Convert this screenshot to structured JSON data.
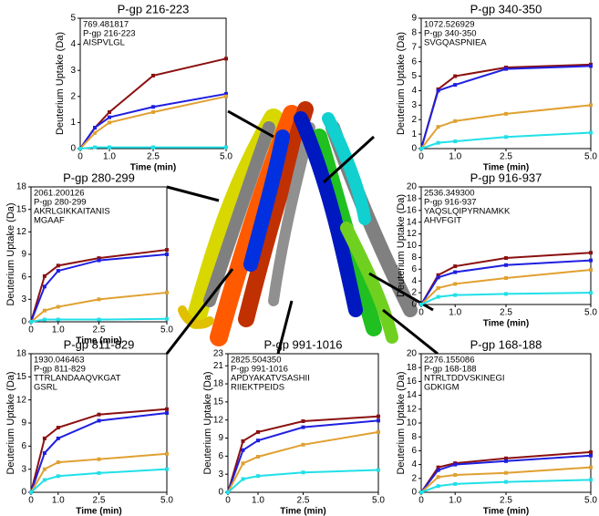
{
  "chart_data": [
    {
      "type": "line",
      "title": "P-gp 216-223",
      "annotation": [
        "769.481817",
        "P-gp 216-223",
        "AISPVLGL"
      ],
      "xlabel": "Time (min)",
      "ylabel": "Deuterium Uptake (Da)",
      "x": [
        0,
        0.5,
        1,
        2.5,
        5
      ],
      "xlim": [
        0,
        5
      ],
      "xticks": [
        0,
        {
          "value": 1,
          "label": "1.0"
        },
        {
          "value": 2.5,
          "label": "2.5"
        },
        {
          "value": 5,
          "label": "5.0"
        }
      ],
      "ylim": [
        0,
        5
      ],
      "yticks": [
        0,
        1,
        2,
        3,
        4,
        5
      ],
      "series": [
        {
          "color": "#8b1010",
          "values": [
            0,
            0.8,
            1.4,
            2.8,
            3.45
          ]
        },
        {
          "color": "#1f1fe0",
          "values": [
            0,
            0.8,
            1.2,
            1.6,
            2.1
          ]
        },
        {
          "color": "#e0a030",
          "values": [
            0,
            0.6,
            1.0,
            1.4,
            2.0
          ]
        },
        {
          "color": "#20e0e8",
          "values": [
            0,
            0.05,
            0.05,
            0.05,
            0.05
          ]
        }
      ]
    },
    {
      "type": "line",
      "title": "P-gp 340-350",
      "annotation": [
        "1072.526929",
        "P-gp 340-350",
        "SVGQASPNIEA"
      ],
      "xlabel": "Time (min)",
      "ylabel": "Deuterium Uptake (Da)",
      "x": [
        0,
        0.5,
        1,
        2.5,
        5
      ],
      "xlim": [
        0,
        5
      ],
      "xticks": [
        0,
        {
          "value": 1,
          "label": "1.0"
        },
        {
          "value": 2.5,
          "label": "2.5"
        },
        {
          "value": 5,
          "label": "5.0"
        }
      ],
      "ylim": [
        0,
        9
      ],
      "yticks": [
        0,
        1,
        2,
        3,
        4,
        5,
        6,
        7,
        8,
        9
      ],
      "series": [
        {
          "color": "#8b1010",
          "values": [
            0,
            4.1,
            5.0,
            5.6,
            5.8
          ]
        },
        {
          "color": "#1f1fe0",
          "values": [
            0,
            4.0,
            4.4,
            5.5,
            5.7
          ]
        },
        {
          "color": "#e0a030",
          "values": [
            0,
            1.5,
            1.9,
            2.4,
            3.0
          ]
        },
        {
          "color": "#20e0e8",
          "values": [
            0,
            0.4,
            0.5,
            0.8,
            1.1
          ]
        }
      ]
    },
    {
      "type": "line",
      "title": "P-gp 280-299",
      "annotation": [
        "2061.200126",
        "P-gp 280-299",
        "AKRLGIKKAITANIS",
        "MGAAF"
      ],
      "xlabel": "Time (min)",
      "ylabel": "Deuterium Uptake (Da)",
      "x": [
        0,
        0.5,
        1,
        2.5,
        5
      ],
      "xlim": [
        0,
        5
      ],
      "xticks": [
        0,
        {
          "value": 1,
          "label": "1.0"
        },
        {
          "value": 2.5,
          "label": "2.5"
        },
        {
          "value": 5,
          "label": "5.0"
        }
      ],
      "ylim": [
        0,
        18
      ],
      "yticks": [
        0,
        3,
        6,
        9,
        12,
        15,
        18
      ],
      "series": [
        {
          "color": "#8b1010",
          "values": [
            0,
            6.1,
            7.5,
            8.5,
            9.6
          ]
        },
        {
          "color": "#1f1fe0",
          "values": [
            0,
            4.7,
            6.8,
            8.2,
            9.0
          ]
        },
        {
          "color": "#e0a030",
          "values": [
            0,
            1.5,
            2.0,
            3.0,
            3.9
          ]
        },
        {
          "color": "#20e0e8",
          "values": [
            0,
            0.3,
            0.3,
            0.3,
            0.4
          ]
        }
      ]
    },
    {
      "type": "line",
      "title": "P-gp 916-937",
      "annotation": [
        "2536.349300",
        "P-gp 916-937",
        "YAQSLQIPYRNAMKK",
        "AHVFGIT"
      ],
      "xlabel": "Time (min)",
      "ylabel": "Deuterium Uptake (Da)",
      "x": [
        0,
        0.5,
        1,
        2.5,
        5
      ],
      "xlim": [
        0,
        5
      ],
      "xticks": [
        0,
        {
          "value": 1,
          "label": "1.0"
        },
        {
          "value": 2.5,
          "label": "2.5"
        },
        {
          "value": 5,
          "label": "5.0"
        }
      ],
      "ylim": [
        0,
        20
      ],
      "yticks": [
        0,
        2,
        4,
        6,
        8,
        10,
        12,
        14,
        16,
        18,
        20
      ],
      "series": [
        {
          "color": "#8b1010",
          "values": [
            0,
            5.0,
            6.5,
            7.9,
            8.8
          ]
        },
        {
          "color": "#1f1fe0",
          "values": [
            0,
            4.6,
            5.5,
            6.7,
            7.5
          ]
        },
        {
          "color": "#e0a030",
          "values": [
            0,
            2.8,
            3.5,
            4.5,
            5.9
          ]
        },
        {
          "color": "#20e0e8",
          "values": [
            0,
            1.3,
            1.6,
            1.8,
            2.0
          ]
        }
      ]
    },
    {
      "type": "line",
      "title": "P-gp 811-829",
      "annotation": [
        "1930.046463",
        "P-gp 811-829",
        "TTRLANDAAQVKGAT",
        "GSRL"
      ],
      "xlabel": "Time (min)",
      "ylabel": "Deuterium Uptake (Da)",
      "x": [
        0,
        0.5,
        1,
        2.5,
        5
      ],
      "xlim": [
        0,
        5
      ],
      "xticks": [
        0,
        {
          "value": 1,
          "label": "1.0"
        },
        {
          "value": 2.5,
          "label": "2.5"
        },
        {
          "value": 5,
          "label": "5.0"
        }
      ],
      "ylim": [
        0,
        18
      ],
      "yticks": [
        0,
        3,
        6,
        9,
        12,
        15,
        18
      ],
      "series": [
        {
          "color": "#8b1010",
          "values": [
            0,
            7.0,
            8.4,
            10.1,
            10.8
          ]
        },
        {
          "color": "#1f1fe0",
          "values": [
            0,
            5.1,
            7.0,
            9.3,
            10.3
          ]
        },
        {
          "color": "#e0a030",
          "values": [
            0,
            3.0,
            3.9,
            4.3,
            5.0
          ]
        },
        {
          "color": "#20e0e8",
          "values": [
            0,
            1.6,
            2.1,
            2.5,
            3.0
          ]
        }
      ]
    },
    {
      "type": "line",
      "title": "P-gp 991-1016",
      "annotation": [
        "2825.504350",
        "P-gp 991-1016",
        "APDYAKATVSASHII",
        "RIIEKTPEIDS"
      ],
      "xlabel": "Time (min)",
      "ylabel": "Deuterium Uptake (Da)",
      "x": [
        0,
        0.5,
        1,
        2.5,
        5
      ],
      "xlim": [
        0,
        5
      ],
      "xticks": [
        0,
        {
          "value": 1,
          "label": "1.0"
        },
        {
          "value": 2.5,
          "label": "2.5"
        },
        {
          "value": 5,
          "label": "5.0"
        }
      ],
      "ylim": [
        0,
        23
      ],
      "yticks": [
        0,
        3,
        6,
        9,
        12,
        15,
        18,
        21,
        23
      ],
      "series": [
        {
          "color": "#8b1010",
          "values": [
            0,
            8.5,
            10.0,
            11.8,
            12.6
          ]
        },
        {
          "color": "#1f1fe0",
          "values": [
            0,
            7.0,
            8.6,
            10.8,
            11.9
          ]
        },
        {
          "color": "#e0a030",
          "values": [
            0,
            4.8,
            5.9,
            7.9,
            10.0
          ]
        },
        {
          "color": "#20e0e8",
          "values": [
            0,
            2.2,
            2.7,
            3.3,
            3.7
          ]
        }
      ]
    },
    {
      "type": "line",
      "title": "P-gp 168-188",
      "annotation": [
        "2276.155086",
        "P-gp 168-188",
        "NTRLTDDVSKINEGI",
        "GDKIGM"
      ],
      "xlabel": "Time (min)",
      "ylabel": "Deuterium Uptake (Da)",
      "x": [
        0,
        0.5,
        1,
        2.5,
        5
      ],
      "xlim": [
        0,
        5
      ],
      "xticks": [
        0,
        {
          "value": 1,
          "label": "1.0"
        },
        {
          "value": 2.5,
          "label": "2.5"
        },
        {
          "value": 5,
          "label": "5.0"
        }
      ],
      "ylim": [
        0,
        20
      ],
      "yticks": [
        0,
        2,
        4,
        6,
        8,
        10,
        12,
        14,
        16,
        18,
        20
      ],
      "series": [
        {
          "color": "#8b1010",
          "values": [
            0,
            3.6,
            4.2,
            4.9,
            5.8
          ]
        },
        {
          "color": "#1f1fe0",
          "values": [
            0,
            3.2,
            4.0,
            4.5,
            5.3
          ]
        },
        {
          "color": "#e0a030",
          "values": [
            0,
            2.2,
            2.5,
            2.8,
            3.6
          ]
        },
        {
          "color": "#20e0e8",
          "values": [
            0,
            0.9,
            1.2,
            1.5,
            1.8
          ]
        }
      ]
    }
  ]
}
